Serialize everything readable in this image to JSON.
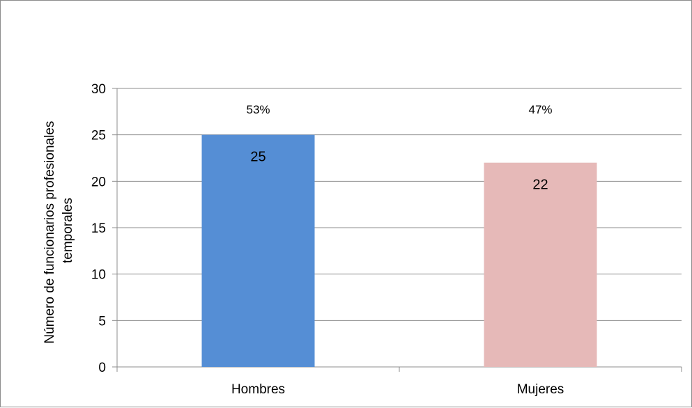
{
  "chart_data": {
    "type": "bar",
    "categories": [
      "Hombres",
      "Mujeres"
    ],
    "values": [
      25,
      22
    ],
    "data_labels": [
      "25",
      "22"
    ],
    "percent_labels": [
      "53%",
      "47%"
    ],
    "colors": [
      "#558ed5",
      "#e6b9b8"
    ],
    "ylabel_lines": [
      "Número de funcionarios profesionales",
      "temporales"
    ],
    "ylim": [
      0,
      30
    ],
    "yticks": [
      "0",
      "5",
      "10",
      "15",
      "20",
      "25",
      "30"
    ],
    "grid": true,
    "legend": false
  }
}
